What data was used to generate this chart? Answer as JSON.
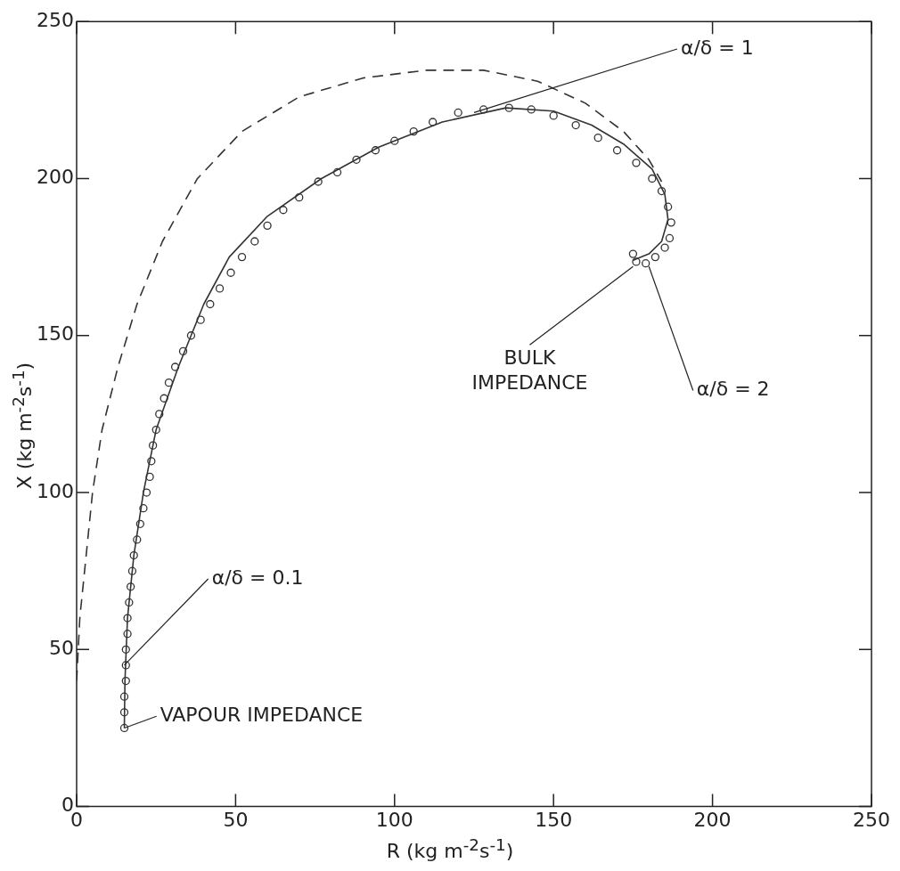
{
  "chart_data": {
    "type": "scatter",
    "xlabel": "R  (kg m$^{-2}$s$^{-1}$)",
    "ylabel": "X  (kg m$^{-2}$s$^{-1}$)",
    "xlim": [
      0,
      250
    ],
    "ylim": [
      0,
      250
    ],
    "xticks": [
      0,
      50,
      100,
      150,
      200,
      250
    ],
    "yticks": [
      0,
      50,
      100,
      150,
      200,
      250
    ],
    "grid": false,
    "legend": false,
    "series": [
      {
        "type": "scatter",
        "marker": "circle",
        "color": "#333333",
        "x": [
          15,
          15,
          15,
          15.5,
          15.5,
          15.5,
          16,
          16,
          16.5,
          17,
          17.5,
          18,
          19,
          20,
          21,
          22,
          23,
          23.5,
          24,
          25,
          26,
          27.5,
          29,
          31,
          33.5,
          36,
          39,
          42,
          45,
          48.5,
          52,
          56,
          60,
          65,
          70,
          76,
          82,
          88,
          94,
          100,
          106,
          112,
          120,
          128,
          136,
          143,
          150,
          157,
          164,
          170,
          176,
          181,
          184,
          186,
          187,
          186.5,
          185,
          182,
          179,
          176,
          175
        ],
        "values": [
          25,
          30,
          35,
          40,
          45,
          50,
          55,
          60,
          65,
          70,
          75,
          80,
          85,
          90,
          95,
          100,
          105,
          110,
          115,
          120,
          125,
          130,
          135,
          140,
          145,
          150,
          155,
          160,
          165,
          170,
          175,
          180,
          185,
          190,
          194,
          199,
          202,
          206,
          209,
          212,
          215,
          218,
          221,
          222,
          222.5,
          222,
          220,
          217,
          213,
          209,
          205,
          200,
          196,
          191,
          186,
          181,
          178,
          175,
          173,
          173.5,
          176
        ]
      },
      {
        "type": "line",
        "marker": "none",
        "line_style": "solid",
        "color": "#333333",
        "x": [
          15,
          15.2,
          16,
          18,
          21,
          25,
          32,
          40,
          48,
          60,
          77,
          95,
          115,
          135,
          150,
          162,
          172,
          181,
          185,
          186,
          184,
          180,
          175
        ],
        "values": [
          25,
          40,
          60,
          80,
          100,
          120,
          140,
          160,
          175,
          188,
          200,
          210,
          218,
          222.5,
          221.5,
          217,
          211,
          203,
          195,
          187,
          180,
          176,
          174
        ]
      },
      {
        "type": "line",
        "marker": "none",
        "line_style": "dashed",
        "color": "#333333",
        "x": [
          0,
          1,
          3,
          5,
          8,
          13,
          19,
          27,
          38,
          52,
          70,
          90,
          110,
          128,
          145,
          160,
          172,
          180,
          184
        ],
        "values": [
          40,
          60,
          80,
          100,
          120,
          140,
          160,
          180,
          200,
          215,
          226,
          232,
          234.5,
          234.5,
          231,
          224,
          215,
          206,
          199
        ]
      }
    ],
    "annotations": [
      {
        "text": "α/δ = 1",
        "x": 125,
        "y": 221
      },
      {
        "text": "α/δ = 2",
        "x": 180,
        "y": 172
      },
      {
        "text": "BULK IMPEDANCE",
        "x": 175,
        "y": 172
      },
      {
        "text": "α/δ = 0.1",
        "x": 15,
        "y": 45
      },
      {
        "text": "VAPOUR IMPEDANCE",
        "x": 15,
        "y": 25
      }
    ]
  }
}
